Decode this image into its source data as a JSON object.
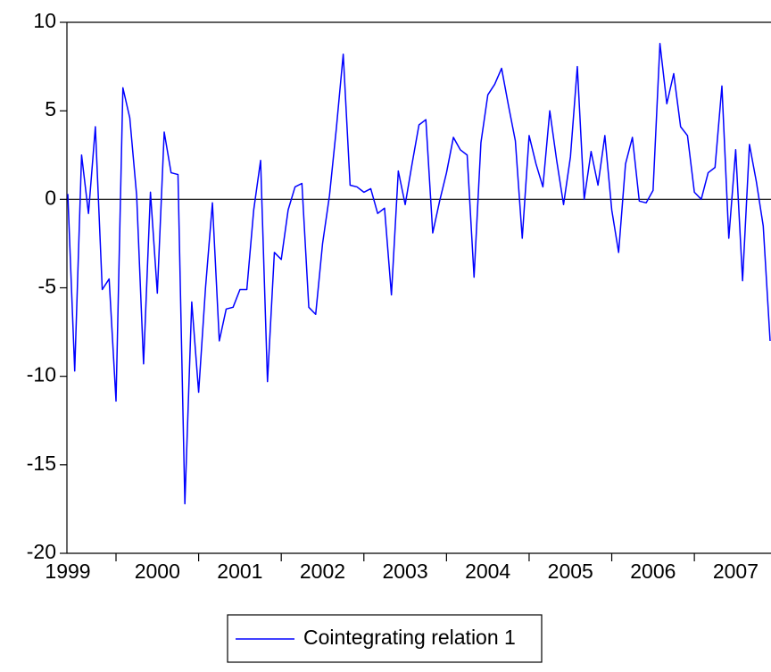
{
  "chart_data": {
    "type": "line",
    "categories": [
      "1999",
      null,
      null,
      null,
      null,
      null,
      null,
      null,
      null,
      null,
      null,
      null,
      null,
      "2000",
      null,
      null,
      null,
      null,
      null,
      null,
      null,
      null,
      null,
      null,
      null,
      "2001",
      null,
      null,
      null,
      null,
      null,
      null,
      null,
      null,
      null,
      null,
      null,
      "2002",
      null,
      null,
      null,
      null,
      null,
      null,
      null,
      null,
      null,
      null,
      null,
      "2003",
      null,
      null,
      null,
      null,
      null,
      null,
      null,
      null,
      null,
      null,
      null,
      "2004",
      null,
      null,
      null,
      null,
      null,
      null,
      null,
      null,
      null,
      null,
      null,
      "2005",
      null,
      null,
      null,
      null,
      null,
      null,
      null,
      null,
      null,
      null,
      null,
      "2006",
      null,
      null,
      null,
      null,
      null,
      null,
      null,
      null,
      null,
      null,
      null,
      "2007",
      null,
      null,
      null,
      null,
      null
    ],
    "series": [
      {
        "name": "Cointegrating relation 1",
        "color": "#0000ff",
        "values": [
          0.3,
          -9.7,
          2.5,
          -0.8,
          4.1,
          -5.1,
          -4.5,
          -11.4,
          6.3,
          4.6,
          0.2,
          -9.3,
          0.4,
          -5.3,
          3.8,
          1.5,
          1.4,
          -17.2,
          -5.8,
          -10.9,
          -5.0,
          -0.2,
          -8.0,
          -6.2,
          -6.1,
          -5.1,
          -5.1,
          -0.6,
          2.2,
          -10.3,
          -3.0,
          -3.4,
          -0.6,
          0.7,
          0.9,
          -6.1,
          -6.5,
          -2.5,
          0.2,
          4.0,
          8.2,
          0.8,
          0.7,
          0.4,
          0.6,
          -0.8,
          -0.5,
          -5.4,
          1.6,
          -0.3,
          2.0,
          4.2,
          4.5,
          -1.9,
          -0.1,
          1.5,
          3.5,
          2.8,
          2.5,
          -4.4,
          3.2,
          5.9,
          6.5,
          7.4,
          5.3,
          3.3,
          -2.2,
          3.6,
          2.0,
          0.7,
          5.0,
          2.2,
          -0.3,
          2.4,
          7.5,
          0.0,
          2.7,
          0.8,
          3.6,
          -0.6,
          -3.0,
          2.0,
          3.5,
          -0.1,
          -0.2,
          0.5,
          8.8,
          5.4,
          7.1,
          4.1,
          3.6,
          0.4,
          0.0,
          1.5,
          1.8,
          6.4,
          -2.2,
          2.8,
          -4.6,
          3.1,
          1.0,
          -1.5,
          -8.0
        ]
      }
    ],
    "ylim": [
      -20,
      10
    ],
    "yticks": [
      -20,
      -15,
      -10,
      -5,
      0,
      5,
      10
    ],
    "zero_line": true,
    "legend": "bottom"
  }
}
